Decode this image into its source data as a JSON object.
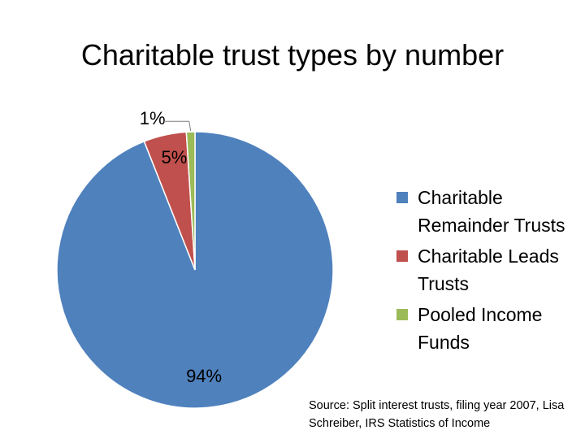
{
  "chart_data": {
    "type": "pie",
    "title": "Charitable trust types by number",
    "series": [
      {
        "name": "Charitable Remainder Trusts",
        "value": 94,
        "label": "94%",
        "color": "#4f81bd"
      },
      {
        "name": "Charitable Leads Trusts",
        "value": 5,
        "label": "5%",
        "color": "#c0504d"
      },
      {
        "name": "Pooled Income Funds",
        "value": 1,
        "label": "1%",
        "color": "#9bbb59"
      }
    ],
    "legend_position": "right",
    "source": "Source: Split interest trusts, filing year 2007, Lisa Schreiber, IRS Statistics of Income"
  }
}
